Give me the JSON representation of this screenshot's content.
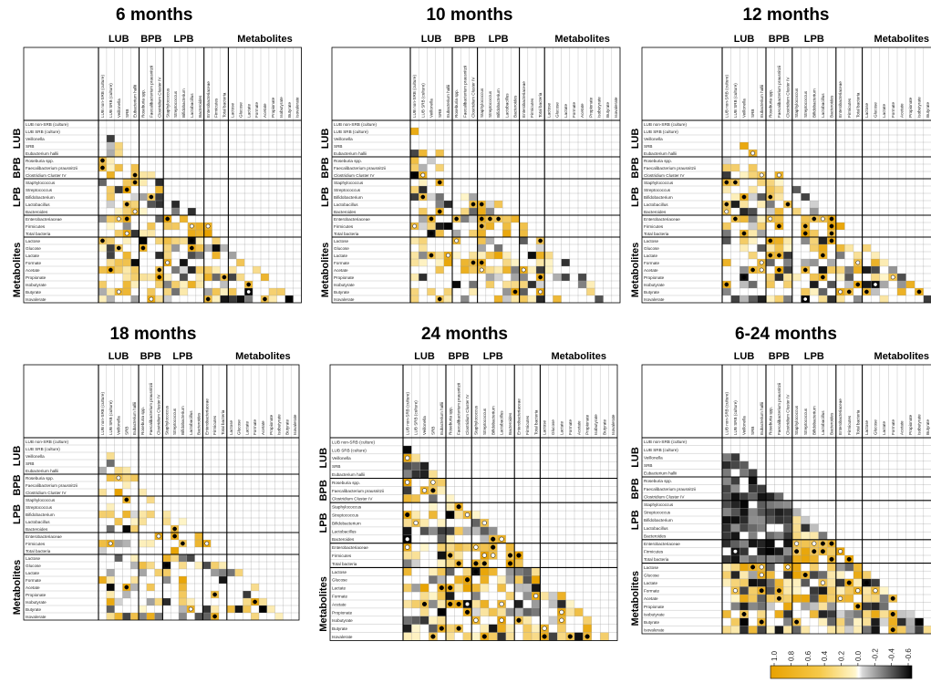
{
  "chart_data": {
    "type": "heatmap",
    "description_title": "Correlation heatmaps",
    "groups": [
      {
        "name": "LUB",
        "members": [
          "LUB non-SRB (culture)",
          "LUB SRB (culture)",
          "Veillonella",
          "SRB",
          "Eubacterium hallii"
        ]
      },
      {
        "name": "BPB",
        "members": [
          "Roseburia spp.",
          "Faecalibacterium prausnitzii",
          "Clostridium Cluster IV"
        ]
      },
      {
        "name": "LPB",
        "members": [
          "Staphylococcus",
          "Streptococcus",
          "Bifidobacterium",
          "Lactobacillus",
          "Bacteroides"
        ]
      },
      {
        "name": "",
        "members": [
          "Enterobacteriaceae",
          "Firmicutes",
          "Total bacteria"
        ]
      },
      {
        "name": "Metabolites",
        "members": [
          "Lactose",
          "Glucose",
          "Lactate",
          "Formate",
          "Acetate",
          "Propionate",
          "Isobutyrate",
          "Butyrate",
          "Isovalerate"
        ]
      }
    ],
    "variables": [
      "LUB non-SRB (culture)",
      "LUB SRB (culture)",
      "Veillonella",
      "SRB",
      "Eubacterium hallii",
      "Roseburia spp.",
      "Faecalibacterium prausnitzii",
      "Clostridium Cluster IV",
      "Staphylococcus",
      "Streptococcus",
      "Bifidobacterium",
      "Lactobacillus",
      "Bacteroides",
      "Enterobacteriaceae",
      "Firmicutes",
      "Total bacteria",
      "Lactose",
      "Glucose",
      "Lactate",
      "Formate",
      "Acetate",
      "Propionate",
      "Isobutyrate",
      "Butyrate",
      "Isovalerate"
    ],
    "panels": [
      {
        "title": "6 months",
        "seed": 11,
        "density": 0.55
      },
      {
        "title": "10 months",
        "seed": 23,
        "density": 0.5
      },
      {
        "title": "12 months",
        "seed": 37,
        "density": 0.55
      },
      {
        "title": "18 months",
        "seed": 41,
        "density": 0.45
      },
      {
        "title": "24 months",
        "seed": 53,
        "density": 0.7
      },
      {
        "title": "6-24 months",
        "seed": 67,
        "density": 0.85
      }
    ],
    "colorbar": {
      "ticks": [
        "1.0",
        "0.8",
        "0.6",
        "0.4",
        "0.2",
        "0.0",
        "-0.2",
        "-0.4",
        "-0.6"
      ],
      "min": -0.6,
      "max": 1.0
    },
    "colors": {
      "positive_high": "#e8a200",
      "positive_low": "#fff6cc",
      "zero": "#ffffff",
      "negative_low": "#d8d8d8",
      "negative_high": "#000000"
    }
  }
}
